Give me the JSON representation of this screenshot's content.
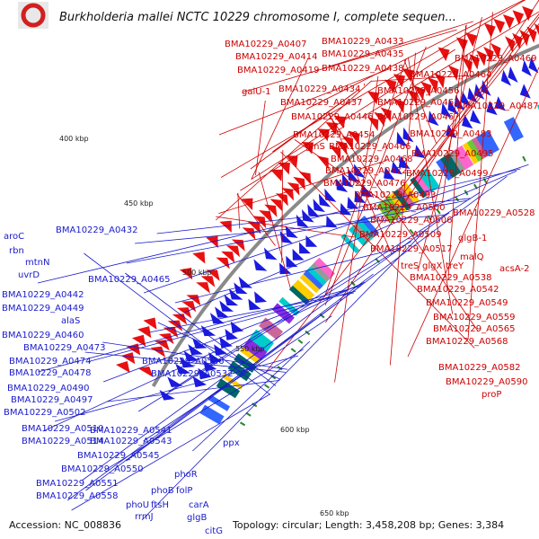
{
  "title": "Burkholderia mallei NCTC 10229 chromosome I, complete sequen...",
  "footer": {
    "accession": "Accession: NC_008836",
    "summary": "Topology: circular; Length: 3,458,208 bp; Genes: 3,384"
  },
  "kbp_labels": [
    "400 kbp",
    "450 kbp",
    "500 kbp",
    "550 kbp",
    "600 kbp",
    "650 kbp"
  ],
  "right_labels": [
    "BMA10229_A0407",
    "BMA10229_A0414",
    "BMA10229_A0419",
    "BMA10229_A0433",
    "BMA10229_A0435",
    "BMA10229_A0438",
    "BMA10229_A0469",
    "BMA10229_A0464",
    "galU-1",
    "BMA10229_A0434",
    "BMA10229_A0456",
    "BMA10229_A0437",
    "BMA10229_A0463",
    "BMA10229_A0487",
    "BMA10229_A0446",
    "BMA10229_A0467",
    "BMA10229_A0454",
    "BMA10229_A0483",
    "glnS",
    "BMA10229_A0466",
    "BMA10229_A0495",
    "BMA10229_A0468",
    "BMA10229_A0472",
    "BMA10229_A0499",
    "BMA10229_A0476",
    "BMA10229_A0493",
    "BMA10229_A0500",
    "BMA10229_A0528",
    "BMA10229_A0506",
    "BMA10229_A0509",
    "glgB-1",
    "BMA10229_A0517",
    "malQ",
    "treS",
    "glgX",
    "treY",
    "acsA-2",
    "BMA10229_A0538",
    "BMA10229_A0542",
    "BMA10229_A0549",
    "BMA10229_A0559",
    "BMA10229_A0565",
    "BMA10229_A0568",
    "BMA10229_A0582",
    "BMA10229_A0590",
    "proP"
  ],
  "left_labels": [
    "BMA10229_A0432",
    "aroC",
    "rbn",
    "mtnN",
    "uvrD",
    "BMA10229_A0465",
    "BMA10229_A0442",
    "BMA10229_A0449",
    "alaS",
    "BMA10229_A0460",
    "BMA10229_A0473",
    "BMA10229_A0474",
    "BMA10229_A0478",
    "BMA10229_A0490",
    "BMA10229_A0497",
    "BMA10229_A0502",
    "BMA10229_A0526",
    "BMA10229_A0532",
    "BMA10229_A0510",
    "BMA10229_A0514",
    "BMA10229_A0541",
    "BMA10229_A0543",
    "BMA10229_A0545",
    "BMA10229_A0550",
    "BMA10229_A0551",
    "BMA10229_A0558",
    "ppx",
    "phoR",
    "phoB",
    "folP",
    "phoU",
    "ftsH",
    "carA",
    "rrmJ",
    "glgB",
    "citG"
  ],
  "colors": {
    "forward_cds": "#e81010",
    "reverse_cds": "#1a1ae0",
    "backbone": "#8a8a8a",
    "right_label": "#cc0000",
    "left_label": "#1a1acc",
    "gc_skew": "#2a8a2a"
  }
}
